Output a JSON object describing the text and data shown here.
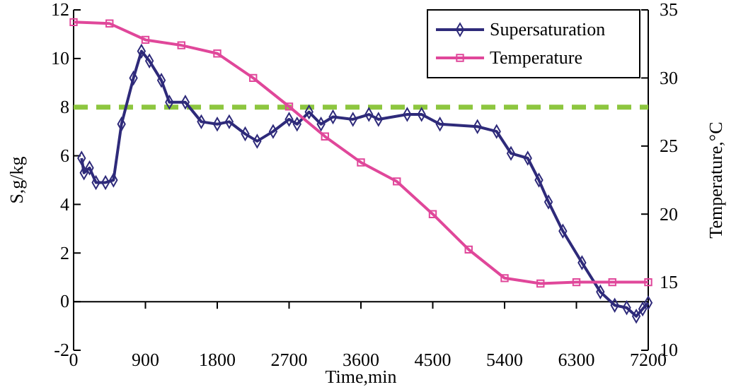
{
  "chart_data": {
    "type": "line",
    "xlabel": "Time,min",
    "ylabel": "S,g/kg",
    "y2label": "Temperature,°C",
    "xlim": [
      0,
      7200
    ],
    "xticks": [
      0,
      900,
      1800,
      2700,
      3600,
      4500,
      5400,
      6300,
      7200
    ],
    "ylim": [
      -2,
      12
    ],
    "yticks": [
      -2,
      0,
      2,
      4,
      6,
      8,
      10,
      12
    ],
    "y2lim": [
      10,
      35
    ],
    "y2ticks": [
      10,
      15,
      20,
      25,
      30,
      35
    ],
    "grid": false,
    "legend": "top right",
    "line_style": "solid",
    "ref_lines": [
      {
        "axis": "y",
        "value": 8,
        "color": "#8dc63f",
        "line_style": "dashed"
      }
    ],
    "series": [
      {
        "name": "Supersaturation",
        "color": "#2e2a7a",
        "marker": "diamond",
        "x": [
          100,
          130,
          200,
          280,
          400,
          500,
          600,
          750,
          850,
          950,
          1100,
          1200,
          1400,
          1600,
          1800,
          1950,
          2150,
          2300,
          2500,
          2700,
          2800,
          2950,
          3100,
          3250,
          3500,
          3700,
          3820,
          4180,
          4360,
          4590,
          5060,
          5300,
          5480,
          5690,
          5830,
          5950,
          6130,
          6370,
          6600,
          6780,
          6930,
          7050,
          7130,
          7200
        ],
        "values": [
          5.9,
          5.3,
          5.5,
          4.9,
          4.9,
          5.0,
          7.3,
          9.2,
          10.3,
          9.9,
          9.1,
          8.2,
          8.2,
          7.4,
          7.3,
          7.4,
          6.9,
          6.6,
          7.0,
          7.5,
          7.3,
          7.8,
          7.3,
          7.6,
          7.5,
          7.7,
          7.5,
          7.7,
          7.7,
          7.3,
          7.2,
          7.0,
          6.1,
          5.9,
          5.0,
          4.1,
          2.9,
          1.6,
          0.4,
          -0.15,
          -0.25,
          -0.6,
          -0.3,
          -0.05
        ]
      },
      {
        "name": "Temperature",
        "color": "#e0479a",
        "marker": "square",
        "axis": "y2",
        "x": [
          0,
          450,
          900,
          1350,
          1800,
          2250,
          2700,
          3150,
          3600,
          4050,
          4500,
          4950,
          5400,
          5850,
          6300,
          6750,
          7200
        ],
        "values": [
          34.1,
          34.0,
          32.8,
          32.4,
          31.8,
          30.0,
          27.9,
          25.7,
          23.8,
          22.4,
          20.0,
          17.4,
          15.3,
          14.9,
          15.0,
          15.0,
          15.0
        ]
      }
    ]
  }
}
